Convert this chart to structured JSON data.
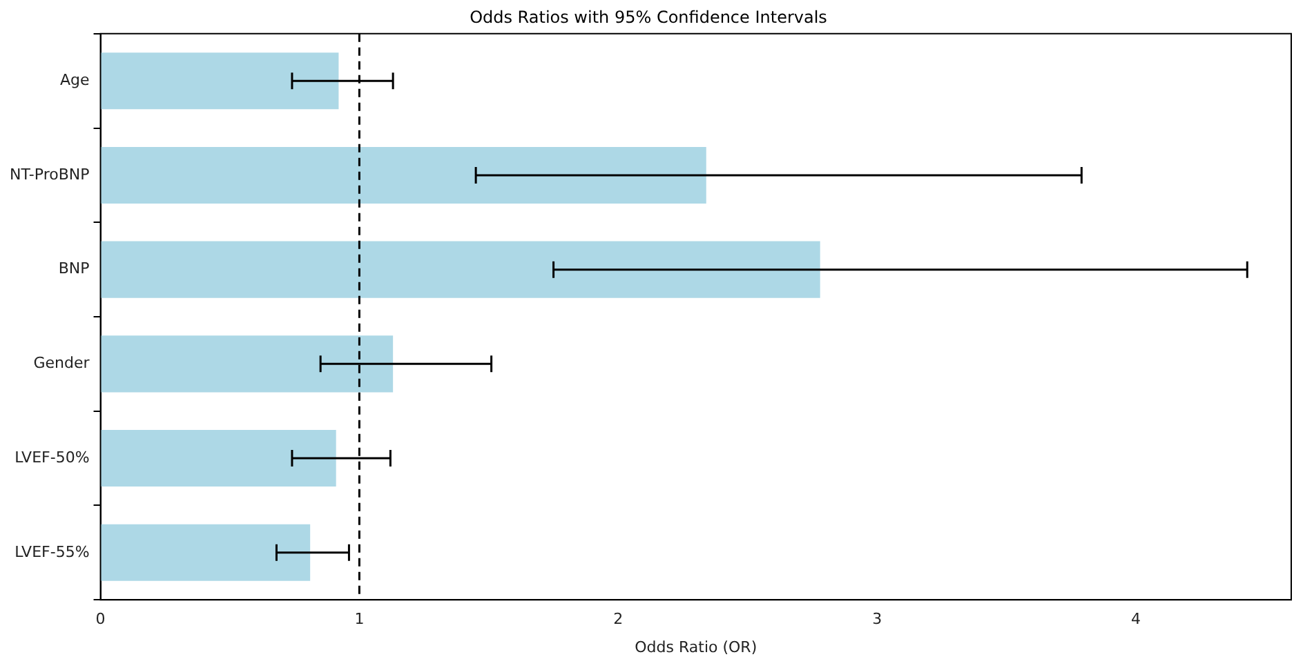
{
  "chart_data": {
    "type": "bar",
    "orientation": "horizontal",
    "title": "Odds Ratios with 95% Confidence Intervals",
    "xlabel": "Odds Ratio (OR)",
    "categories": [
      "Age",
      "NT-ProBNP",
      "BNP",
      "Gender",
      "LVEF-50%",
      "LVEF-55%"
    ],
    "values": [
      0.92,
      2.34,
      2.78,
      1.13,
      0.91,
      0.81
    ],
    "errors": [
      [
        0.74,
        1.13
      ],
      [
        1.45,
        3.79
      ],
      [
        1.75,
        4.43
      ],
      [
        0.85,
        1.51
      ],
      [
        0.74,
        1.12
      ],
      [
        0.68,
        0.96
      ]
    ],
    "color": "#add8e6",
    "xlim": [
      0,
      4.6
    ],
    "xticks": [
      0,
      1,
      2,
      3,
      4
    ],
    "ref_lines": [
      {
        "axis": "x",
        "value": 1,
        "line_style": "dashed",
        "color": "#000000"
      }
    ],
    "grid": false,
    "legend": false
  }
}
